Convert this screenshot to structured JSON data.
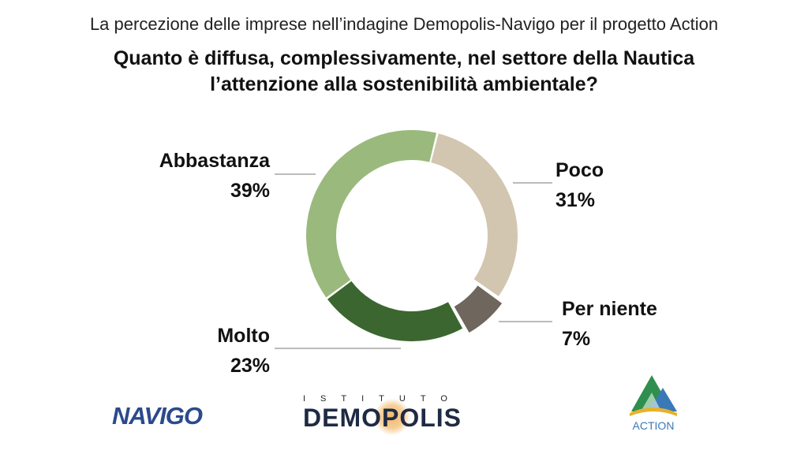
{
  "header": {
    "subtitle": "La percezione delle imprese nell’indagine Demopolis-Navigo per il progetto Action",
    "title_line1": "Quanto è diffusa, complessivamente, nel settore della Nautica",
    "title_line2": "l’attenzione alla sostenibilità ambientale?"
  },
  "chart_data": {
    "type": "pie",
    "subtype": "donut",
    "title": "Quanto è diffusa, complessivamente, nel settore della Nautica l’attenzione alla sostenibilità ambientale?",
    "categories": [
      "Poco",
      "Per niente",
      "Molto",
      "Abbastanza"
    ],
    "values": [
      31,
      7,
      23,
      39
    ],
    "value_labels": [
      "31%",
      "7%",
      "23%",
      "39%"
    ],
    "colors": [
      "#d2c6b0",
      "#6f665e",
      "#3c6630",
      "#9ab97c"
    ],
    "exploded": [
      "Per niente"
    ],
    "legend": "none"
  },
  "logos": {
    "navigo": "NAVIGO",
    "istituto": "ISTITUTO",
    "demopolis": "DEMOPOLIS",
    "action": "ACTION"
  }
}
